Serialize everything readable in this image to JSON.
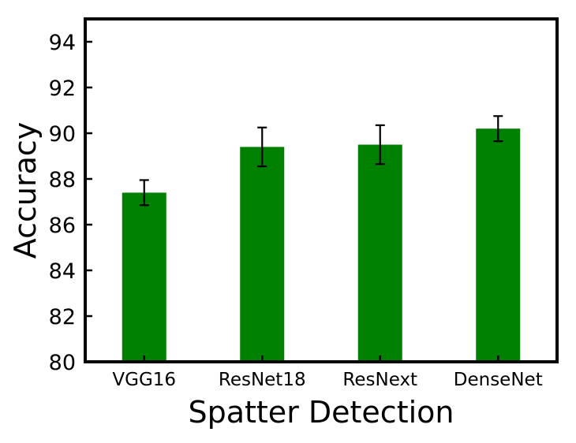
{
  "chart_data": {
    "type": "bar",
    "title": "",
    "xlabel": "Spatter Detection",
    "ylabel": "Accuracy",
    "categories": [
      "VGG16",
      "ResNet18",
      "ResNext",
      "DenseNet"
    ],
    "values": [
      87.4,
      89.4,
      89.5,
      90.2
    ],
    "error": [
      0.55,
      0.85,
      0.85,
      0.55
    ],
    "ylim": [
      80,
      95
    ],
    "yticks": [
      80,
      82,
      84,
      86,
      88,
      90,
      92,
      94
    ],
    "grid": false,
    "legend": "none",
    "bar_color": "#008000",
    "error_color": "#000000"
  }
}
